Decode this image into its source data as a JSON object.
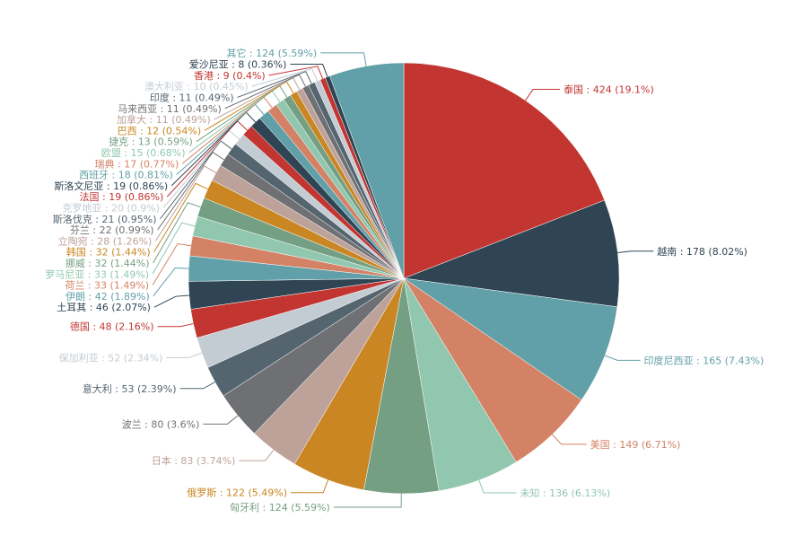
{
  "chart_data": {
    "type": "pie",
    "title": "",
    "label_format": "{name} : {value} ({percent}%)",
    "palette": [
      "#c23531",
      "#2f4554",
      "#61a0a8",
      "#d48265",
      "#91c7ae",
      "#749f83",
      "#ca8622",
      "#bda29a",
      "#6e7074",
      "#546570",
      "#c4ccd3"
    ],
    "slices": [
      {
        "name": "泰国",
        "value": 424,
        "percent": "19.1"
      },
      {
        "name": "越南",
        "value": 178,
        "percent": "8.02"
      },
      {
        "name": "印度尼西亚",
        "value": 165,
        "percent": "7.43"
      },
      {
        "name": "美国",
        "value": 149,
        "percent": "6.71"
      },
      {
        "name": "未知",
        "value": 136,
        "percent": "6.13"
      },
      {
        "name": "匈牙利",
        "value": 124,
        "percent": "5.59"
      },
      {
        "name": "俄罗斯",
        "value": 122,
        "percent": "5.49"
      },
      {
        "name": "日本",
        "value": 83,
        "percent": "3.74"
      },
      {
        "name": "波兰",
        "value": 80,
        "percent": "3.6"
      },
      {
        "name": "意大利",
        "value": 53,
        "percent": "2.39"
      },
      {
        "name": "保加利亚",
        "value": 52,
        "percent": "2.34"
      },
      {
        "name": "德国",
        "value": 48,
        "percent": "2.16"
      },
      {
        "name": "土耳其",
        "value": 46,
        "percent": "2.07"
      },
      {
        "name": "伊朗",
        "value": 42,
        "percent": "1.89"
      },
      {
        "name": "荷兰",
        "value": 33,
        "percent": "1.49"
      },
      {
        "name": "罗马尼亚",
        "value": 33,
        "percent": "1.49"
      },
      {
        "name": "挪威",
        "value": 32,
        "percent": "1.44"
      },
      {
        "name": "韩国",
        "value": 32,
        "percent": "1.44"
      },
      {
        "name": "立陶宛",
        "value": 28,
        "percent": "1.26"
      },
      {
        "name": "芬兰",
        "value": 22,
        "percent": "0.99"
      },
      {
        "name": "斯洛伐克",
        "value": 21,
        "percent": "0.95"
      },
      {
        "name": "克罗地亚",
        "value": 20,
        "percent": "0.9"
      },
      {
        "name": "法国",
        "value": 19,
        "percent": "0.86"
      },
      {
        "name": "斯洛文尼亚",
        "value": 19,
        "percent": "0.86"
      },
      {
        "name": "西班牙",
        "value": 18,
        "percent": "0.81"
      },
      {
        "name": "瑞典",
        "value": 17,
        "percent": "0.77"
      },
      {
        "name": "欧盟",
        "value": 15,
        "percent": "0.68"
      },
      {
        "name": "捷克",
        "value": 13,
        "percent": "0.59"
      },
      {
        "name": "巴西",
        "value": 12,
        "percent": "0.54"
      },
      {
        "name": "加拿大",
        "value": 11,
        "percent": "0.49"
      },
      {
        "name": "马来西亚",
        "value": 11,
        "percent": "0.49"
      },
      {
        "name": "印度",
        "value": 11,
        "percent": "0.49"
      },
      {
        "name": "澳大利亚",
        "value": 10,
        "percent": "0.45"
      },
      {
        "name": "香港",
        "value": 9,
        "percent": "0.4"
      },
      {
        "name": "爱沙尼亚",
        "value": 8,
        "percent": "0.36"
      },
      {
        "name": "其它",
        "value": 124,
        "percent": "5.59"
      }
    ]
  }
}
